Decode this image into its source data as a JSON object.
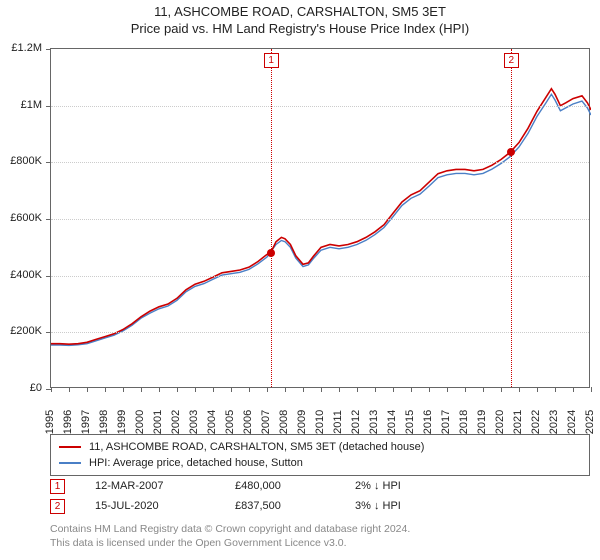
{
  "title_line1": "11, ASHCOMBE ROAD, CARSHALTON, SM5 3ET",
  "title_line2": "Price paid vs. HM Land Registry's House Price Index (HPI)",
  "chart": {
    "type": "line",
    "background_color": "#ffffff",
    "grid_color": "#cccccc",
    "axis_color": "#666666",
    "x_years": [
      1995,
      1996,
      1997,
      1998,
      1999,
      2000,
      2001,
      2002,
      2003,
      2004,
      2005,
      2006,
      2007,
      2008,
      2009,
      2010,
      2011,
      2012,
      2013,
      2014,
      2015,
      2016,
      2017,
      2018,
      2019,
      2020,
      2021,
      2022,
      2023,
      2024,
      2025
    ],
    "ylim": [
      0,
      1200000
    ],
    "ytick_step": 200000,
    "ytick_labels": [
      "£0",
      "£200K",
      "£400K",
      "£600K",
      "£800K",
      "£1M",
      "£1.2M"
    ],
    "series": [
      {
        "name": "property",
        "label": "11, ASHCOMBE ROAD, CARSHALTON, SM5 3ET (detached house)",
        "color": "#cc0000",
        "line_width": 1.6,
        "data": [
          [
            1995.0,
            160000
          ],
          [
            1995.5,
            160000
          ],
          [
            1996.0,
            158000
          ],
          [
            1996.5,
            160000
          ],
          [
            1997.0,
            165000
          ],
          [
            1997.5,
            175000
          ],
          [
            1998.0,
            185000
          ],
          [
            1998.5,
            195000
          ],
          [
            1999.0,
            210000
          ],
          [
            1999.5,
            230000
          ],
          [
            2000.0,
            255000
          ],
          [
            2000.5,
            275000
          ],
          [
            2001.0,
            290000
          ],
          [
            2001.5,
            300000
          ],
          [
            2002.0,
            320000
          ],
          [
            2002.5,
            350000
          ],
          [
            2003.0,
            370000
          ],
          [
            2003.5,
            380000
          ],
          [
            2004.0,
            395000
          ],
          [
            2004.5,
            410000
          ],
          [
            2005.0,
            415000
          ],
          [
            2005.5,
            420000
          ],
          [
            2006.0,
            430000
          ],
          [
            2006.5,
            450000
          ],
          [
            2007.0,
            475000
          ],
          [
            2007.2,
            480000
          ],
          [
            2007.5,
            520000
          ],
          [
            2007.8,
            535000
          ],
          [
            2008.0,
            530000
          ],
          [
            2008.3,
            510000
          ],
          [
            2008.6,
            470000
          ],
          [
            2009.0,
            440000
          ],
          [
            2009.3,
            445000
          ],
          [
            2009.6,
            470000
          ],
          [
            2010.0,
            500000
          ],
          [
            2010.5,
            510000
          ],
          [
            2011.0,
            505000
          ],
          [
            2011.5,
            510000
          ],
          [
            2012.0,
            520000
          ],
          [
            2012.5,
            535000
          ],
          [
            2013.0,
            555000
          ],
          [
            2013.5,
            580000
          ],
          [
            2014.0,
            620000
          ],
          [
            2014.5,
            660000
          ],
          [
            2015.0,
            685000
          ],
          [
            2015.5,
            700000
          ],
          [
            2016.0,
            730000
          ],
          [
            2016.5,
            760000
          ],
          [
            2017.0,
            770000
          ],
          [
            2017.5,
            775000
          ],
          [
            2018.0,
            775000
          ],
          [
            2018.5,
            770000
          ],
          [
            2019.0,
            775000
          ],
          [
            2019.5,
            790000
          ],
          [
            2020.0,
            810000
          ],
          [
            2020.5,
            835000
          ],
          [
            2021.0,
            870000
          ],
          [
            2021.5,
            920000
          ],
          [
            2022.0,
            980000
          ],
          [
            2022.5,
            1030000
          ],
          [
            2022.8,
            1060000
          ],
          [
            2023.0,
            1040000
          ],
          [
            2023.3,
            1000000
          ],
          [
            2023.6,
            1010000
          ],
          [
            2024.0,
            1025000
          ],
          [
            2024.5,
            1035000
          ],
          [
            2024.8,
            1010000
          ],
          [
            2025.0,
            985000
          ]
        ]
      },
      {
        "name": "hpi",
        "label": "HPI: Average price, detached house, Sutton",
        "color": "#4a7fc6",
        "line_width": 1.4,
        "data": [
          [
            1995.0,
            155000
          ],
          [
            1995.5,
            155000
          ],
          [
            1996.0,
            154000
          ],
          [
            1996.5,
            156000
          ],
          [
            1997.0,
            160000
          ],
          [
            1997.5,
            170000
          ],
          [
            1998.0,
            180000
          ],
          [
            1998.5,
            190000
          ],
          [
            1999.0,
            205000
          ],
          [
            1999.5,
            225000
          ],
          [
            2000.0,
            250000
          ],
          [
            2000.5,
            268000
          ],
          [
            2001.0,
            283000
          ],
          [
            2001.5,
            293000
          ],
          [
            2002.0,
            313000
          ],
          [
            2002.5,
            343000
          ],
          [
            2003.0,
            362000
          ],
          [
            2003.5,
            372000
          ],
          [
            2004.0,
            387000
          ],
          [
            2004.5,
            402000
          ],
          [
            2005.0,
            407000
          ],
          [
            2005.5,
            412000
          ],
          [
            2006.0,
            422000
          ],
          [
            2006.5,
            442000
          ],
          [
            2007.0,
            466000
          ],
          [
            2007.5,
            510000
          ],
          [
            2007.8,
            524000
          ],
          [
            2008.0,
            520000
          ],
          [
            2008.3,
            500000
          ],
          [
            2008.6,
            462000
          ],
          [
            2009.0,
            432000
          ],
          [
            2009.3,
            438000
          ],
          [
            2009.6,
            462000
          ],
          [
            2010.0,
            490000
          ],
          [
            2010.5,
            500000
          ],
          [
            2011.0,
            495000
          ],
          [
            2011.5,
            500000
          ],
          [
            2012.0,
            510000
          ],
          [
            2012.5,
            525000
          ],
          [
            2013.0,
            545000
          ],
          [
            2013.5,
            570000
          ],
          [
            2014.0,
            608000
          ],
          [
            2014.5,
            648000
          ],
          [
            2015.0,
            673000
          ],
          [
            2015.5,
            688000
          ],
          [
            2016.0,
            716000
          ],
          [
            2016.5,
            746000
          ],
          [
            2017.0,
            756000
          ],
          [
            2017.5,
            761000
          ],
          [
            2018.0,
            761000
          ],
          [
            2018.5,
            756000
          ],
          [
            2019.0,
            761000
          ],
          [
            2019.5,
            776000
          ],
          [
            2020.0,
            796000
          ],
          [
            2020.5,
            820000
          ],
          [
            2021.0,
            854000
          ],
          [
            2021.5,
            902000
          ],
          [
            2022.0,
            962000
          ],
          [
            2022.5,
            1010000
          ],
          [
            2022.8,
            1040000
          ],
          [
            2023.0,
            1020000
          ],
          [
            2023.3,
            982000
          ],
          [
            2023.6,
            992000
          ],
          [
            2024.0,
            1006000
          ],
          [
            2024.5,
            1016000
          ],
          [
            2024.8,
            992000
          ],
          [
            2025.0,
            967000
          ]
        ]
      }
    ],
    "events": [
      {
        "n": "1",
        "year": 2007.2,
        "value": 480000,
        "color": "#cc0000"
      },
      {
        "n": "2",
        "year": 2020.54,
        "value": 837500,
        "color": "#cc0000"
      }
    ]
  },
  "legend": {
    "items": [
      {
        "color": "#cc0000",
        "label": "11, ASHCOMBE ROAD, CARSHALTON, SM5 3ET (detached house)"
      },
      {
        "color": "#4a7fc6",
        "label": "HPI: Average price, detached house, Sutton"
      }
    ]
  },
  "transactions": [
    {
      "n": "1",
      "color": "#cc0000",
      "date": "12-MAR-2007",
      "price": "£480,000",
      "delta": "2% ↓ HPI"
    },
    {
      "n": "2",
      "color": "#cc0000",
      "date": "15-JUL-2020",
      "price": "£837,500",
      "delta": "3% ↓ HPI"
    }
  ],
  "footer": {
    "line1": "Contains HM Land Registry data © Crown copyright and database right 2024.",
    "line2": "This data is licensed under the Open Government Licence v3.0."
  }
}
